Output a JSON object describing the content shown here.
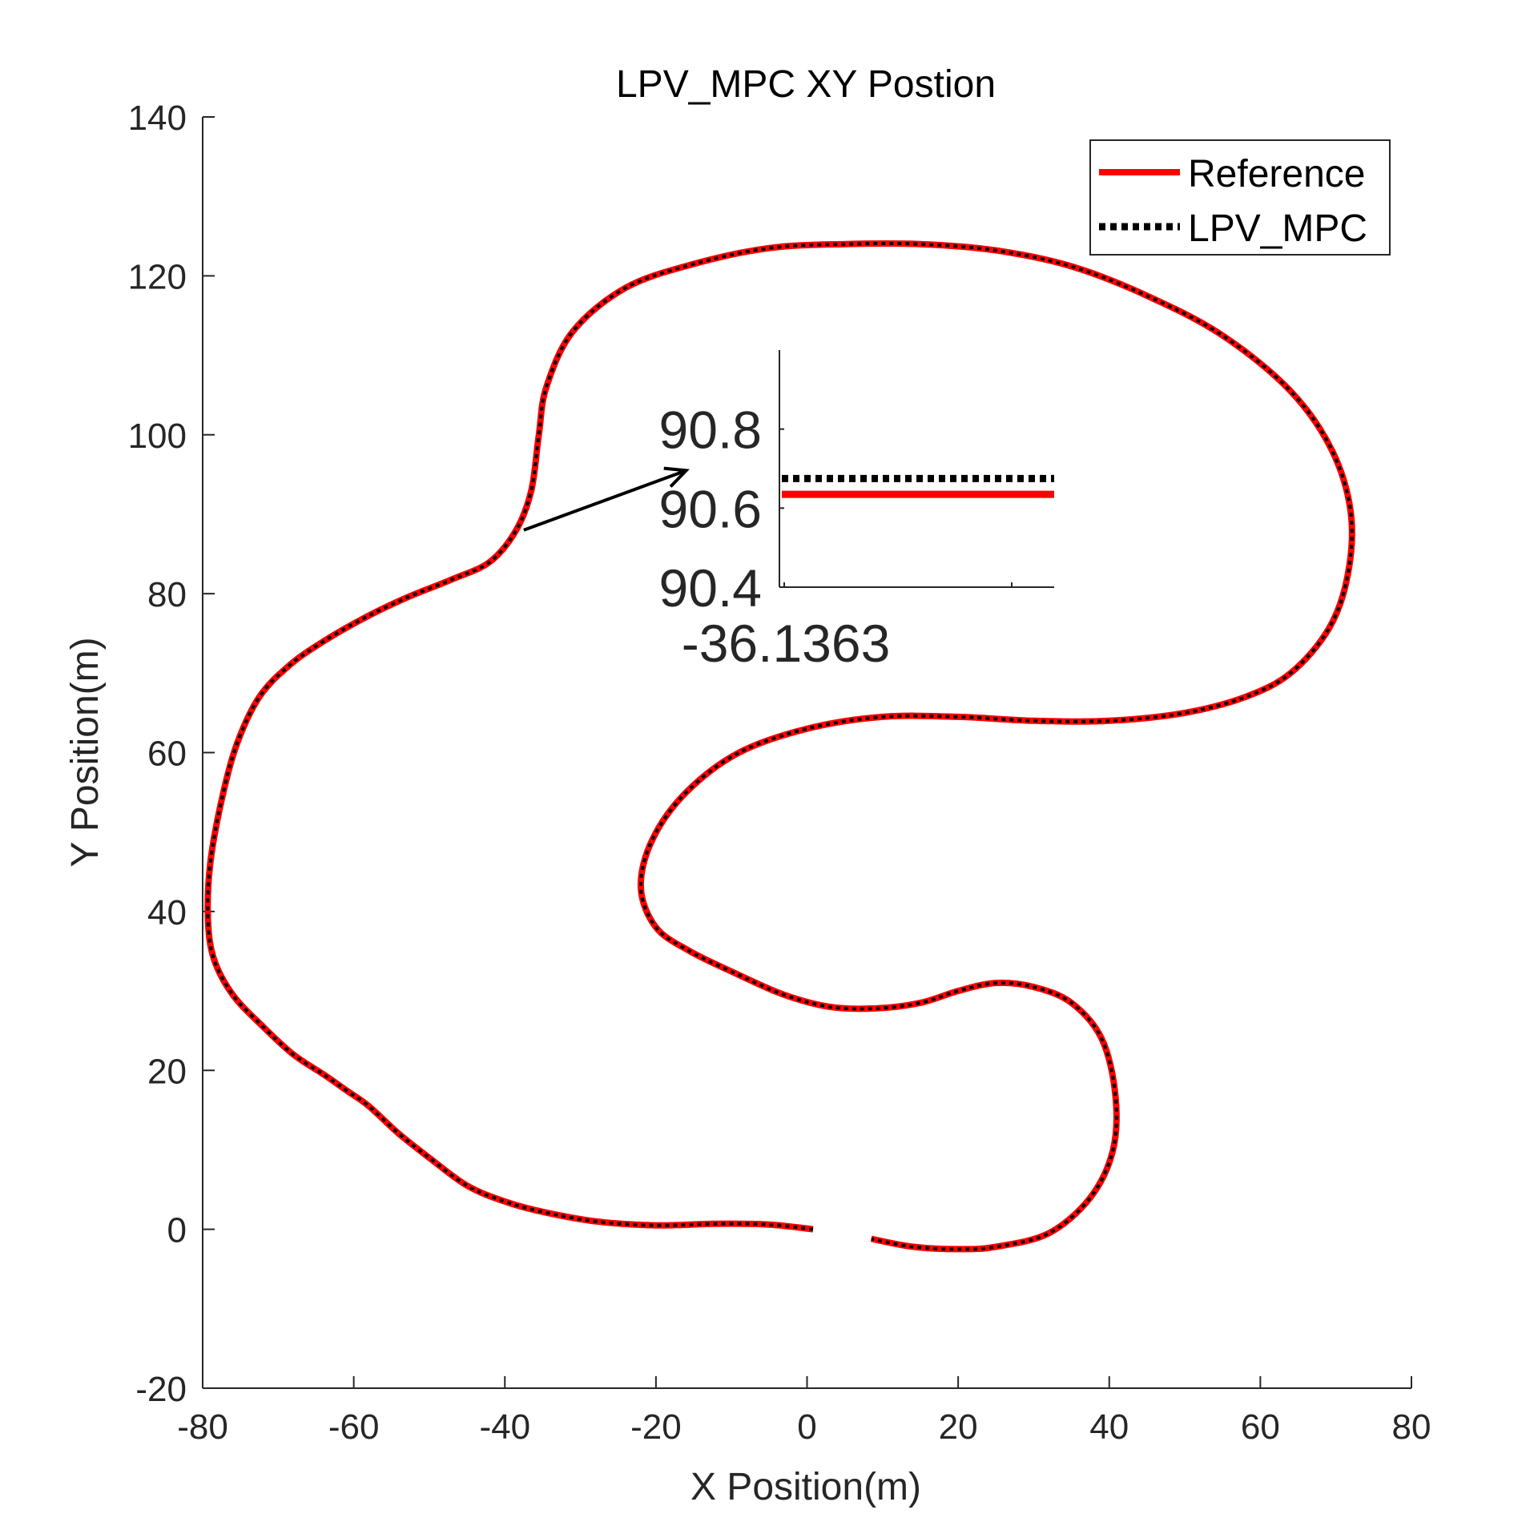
{
  "chart_data": {
    "type": "line",
    "title": "LPV_MPC XY Postion",
    "xlabel": "X Position(m)",
    "ylabel": "Y Position(m)",
    "xlim": [
      -80,
      80
    ],
    "ylim": [
      -20,
      140
    ],
    "xticks": [
      -80,
      -60,
      -40,
      -20,
      0,
      20,
      40,
      60,
      80
    ],
    "yticks": [
      -20,
      0,
      20,
      40,
      60,
      80,
      100,
      120,
      140
    ],
    "legend": {
      "position": "top-right",
      "entries": [
        "Reference",
        "LPV_MPC"
      ]
    },
    "series": [
      {
        "name": "Reference",
        "color": "#ff0000",
        "style": "solid",
        "points": [
          [
            0.8,
            0
          ],
          [
            -5,
            0.6
          ],
          [
            -12,
            0.7
          ],
          [
            -20,
            0.5
          ],
          [
            -28,
            1
          ],
          [
            -35,
            2.2
          ],
          [
            -40,
            3.5
          ],
          [
            -45,
            5.5
          ],
          [
            -50,
            9
          ],
          [
            -54,
            12
          ],
          [
            -58,
            15.5
          ],
          [
            -61,
            17.5
          ],
          [
            -64,
            19.5
          ],
          [
            -68,
            22
          ],
          [
            -72,
            25.5
          ],
          [
            -76,
            29.5
          ],
          [
            -78.5,
            34
          ],
          [
            -79.3,
            39
          ],
          [
            -79,
            46
          ],
          [
            -77.5,
            54
          ],
          [
            -75.5,
            61
          ],
          [
            -72.5,
            67
          ],
          [
            -68.5,
            71
          ],
          [
            -64,
            74
          ],
          [
            -58.5,
            77
          ],
          [
            -53,
            79.5
          ],
          [
            -47,
            81.8
          ],
          [
            -42,
            84
          ],
          [
            -38.5,
            88
          ],
          [
            -36.5,
            93
          ],
          [
            -35.5,
            100
          ],
          [
            -34.5,
            106
          ],
          [
            -31,
            113
          ],
          [
            -24,
            118.5
          ],
          [
            -15,
            121.5
          ],
          [
            -5,
            123.5
          ],
          [
            5,
            124
          ],
          [
            15,
            124
          ],
          [
            25,
            123.2
          ],
          [
            35,
            121.2
          ],
          [
            45,
            117.5
          ],
          [
            55,
            112.5
          ],
          [
            64,
            105.5
          ],
          [
            69.5,
            98
          ],
          [
            72,
            90
          ],
          [
            71.5,
            82
          ],
          [
            69,
            75.5
          ],
          [
            64,
            70
          ],
          [
            58,
            67
          ],
          [
            50,
            65
          ],
          [
            40,
            64
          ],
          [
            30,
            64
          ],
          [
            20,
            64.5
          ],
          [
            10,
            64.5
          ],
          [
            0,
            63
          ],
          [
            -9,
            60
          ],
          [
            -16,
            55
          ],
          [
            -20.5,
            49
          ],
          [
            -22,
            43
          ],
          [
            -20,
            38
          ],
          [
            -15.5,
            35
          ],
          [
            -9,
            32
          ],
          [
            -3,
            29.5
          ],
          [
            3,
            28
          ],
          [
            9,
            27.8
          ],
          [
            15,
            28.5
          ],
          [
            20,
            30
          ],
          [
            25,
            31
          ],
          [
            30,
            30.5
          ],
          [
            35,
            28.5
          ],
          [
            39,
            24
          ],
          [
            40.8,
            17
          ],
          [
            40.5,
            10
          ],
          [
            37.5,
            4
          ],
          [
            32,
            -0.5
          ],
          [
            25,
            -2.2
          ],
          [
            20,
            -2.5
          ],
          [
            14,
            -2.2
          ],
          [
            8.5,
            -1.2
          ]
        ]
      },
      {
        "name": "LPV_MPC",
        "color": "#000000",
        "style": "dotted",
        "points": [
          [
            0.8,
            0
          ],
          [
            -5,
            0.6
          ],
          [
            -12,
            0.7
          ],
          [
            -20,
            0.5
          ],
          [
            -28,
            1
          ],
          [
            -35,
            2.2
          ],
          [
            -40,
            3.5
          ],
          [
            -45,
            5.5
          ],
          [
            -50,
            9
          ],
          [
            -54,
            12
          ],
          [
            -58,
            15.5
          ],
          [
            -61,
            17.5
          ],
          [
            -64,
            19.5
          ],
          [
            -68,
            22
          ],
          [
            -72,
            25.5
          ],
          [
            -76,
            29.5
          ],
          [
            -78.5,
            34
          ],
          [
            -79.3,
            39
          ],
          [
            -79,
            46
          ],
          [
            -77.5,
            54
          ],
          [
            -75.5,
            61
          ],
          [
            -72.5,
            67
          ],
          [
            -68.5,
            71
          ],
          [
            -64,
            74
          ],
          [
            -58.5,
            77
          ],
          [
            -53,
            79.5
          ],
          [
            -47,
            81.8
          ],
          [
            -42,
            84
          ],
          [
            -38.5,
            88
          ],
          [
            -36.5,
            93
          ],
          [
            -35.5,
            100
          ],
          [
            -34.5,
            106
          ],
          [
            -31,
            113
          ],
          [
            -24,
            118.5
          ],
          [
            -15,
            121.5
          ],
          [
            -5,
            123.5
          ],
          [
            5,
            124
          ],
          [
            15,
            124
          ],
          [
            25,
            123.2
          ],
          [
            35,
            121.2
          ],
          [
            45,
            117.5
          ],
          [
            55,
            112.5
          ],
          [
            64,
            105.5
          ],
          [
            69.5,
            98
          ],
          [
            72,
            90
          ],
          [
            71.5,
            82
          ],
          [
            69,
            75.5
          ],
          [
            64,
            70
          ],
          [
            58,
            67
          ],
          [
            50,
            65
          ],
          [
            40,
            64
          ],
          [
            30,
            64
          ],
          [
            20,
            64.5
          ],
          [
            10,
            64.5
          ],
          [
            0,
            63
          ],
          [
            -9,
            60
          ],
          [
            -16,
            55
          ],
          [
            -20.5,
            49
          ],
          [
            -22,
            43
          ],
          [
            -20,
            38
          ],
          [
            -15.5,
            35
          ],
          [
            -9,
            32
          ],
          [
            -3,
            29.5
          ],
          [
            3,
            28
          ],
          [
            9,
            27.8
          ],
          [
            15,
            28.5
          ],
          [
            20,
            30
          ],
          [
            25,
            31
          ],
          [
            30,
            30.5
          ],
          [
            35,
            28.5
          ],
          [
            39,
            24
          ],
          [
            40.8,
            17
          ],
          [
            40.5,
            10
          ],
          [
            37.5,
            4
          ],
          [
            32,
            -0.5
          ],
          [
            25,
            -2.2
          ],
          [
            20,
            -2.5
          ],
          [
            14,
            -2.2
          ],
          [
            8.5,
            -1.2
          ]
        ]
      }
    ],
    "annotation": {
      "type": "arrow",
      "from": [
        -37.5,
        88
      ],
      "to": [
        -16,
        95.5
      ]
    },
    "inset": {
      "type": "line",
      "ylim": [
        90.4,
        91.0
      ],
      "yticks": [
        90.4,
        90.6,
        90.8
      ],
      "xtick_label": "-36.1363",
      "series": [
        {
          "name": "Reference",
          "y": 90.635,
          "color": "#ff0000",
          "style": "solid"
        },
        {
          "name": "LPV_MPC",
          "y": 90.675,
          "color": "#000000",
          "style": "dotted"
        }
      ]
    }
  }
}
